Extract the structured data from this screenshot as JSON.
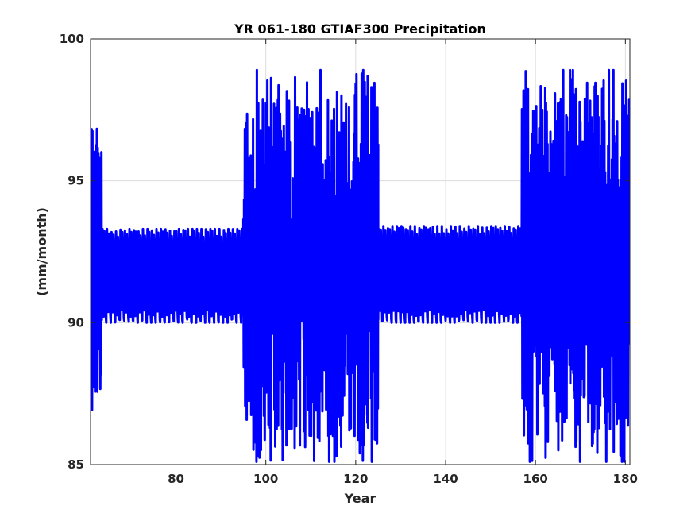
{
  "chart_data": {
    "type": "line",
    "title": "YR 061-180 GTIAF300 Precipitation",
    "xlabel": "Year",
    "ylabel": "(mm/month)",
    "xlim": [
      61,
      181
    ],
    "ylim": [
      85,
      100
    ],
    "xticks": [
      80,
      100,
      120,
      140,
      160,
      180
    ],
    "yticks": [
      85,
      90,
      95,
      100
    ],
    "grid": true,
    "series_color": "#0000ff",
    "segments": [
      {
        "x_start": 61,
        "x_end": 63.5,
        "kind": "spin",
        "lo": 86.9,
        "hi": 97.0
      },
      {
        "x_start": 63.5,
        "x_end": 95,
        "kind": "seasonal",
        "lo": 90.0,
        "hi": 93.3
      },
      {
        "x_start": 95,
        "x_end": 125,
        "kind": "variable",
        "lo": 85.1,
        "hi": 98.9
      },
      {
        "x_start": 125,
        "x_end": 157,
        "kind": "seasonal",
        "lo": 90.0,
        "hi": 93.4
      },
      {
        "x_start": 157,
        "x_end": 181,
        "kind": "variable",
        "lo": 85.1,
        "hi": 98.9
      }
    ]
  }
}
